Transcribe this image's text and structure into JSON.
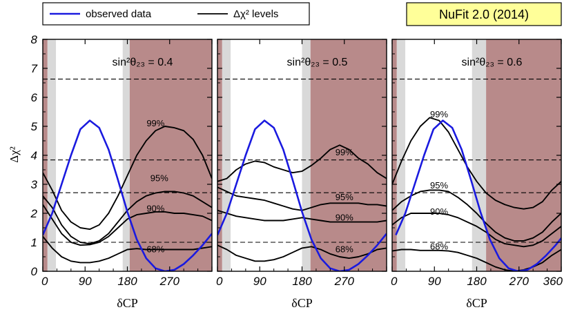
{
  "chart_data": {
    "type": "line",
    "badge": "NuFit 2.0 (2014)",
    "legend": [
      {
        "label": "observed data",
        "color": "#1a1adf"
      },
      {
        "label": "Δχ² levels",
        "color": "#000000"
      }
    ],
    "ylabel": "Δχ²",
    "xlabel": "δCP",
    "x_range": [
      0,
      360
    ],
    "y_range": [
      0,
      8
    ],
    "x_ticks": [
      0,
      90,
      180,
      270,
      360
    ],
    "y_ticks": [
      0,
      1,
      2,
      3,
      4,
      5,
      6,
      7,
      8
    ],
    "y_tick_labels": [
      "0",
      "1",
      "2",
      "3",
      "4",
      "5",
      "6",
      "7",
      "8"
    ],
    "colors": {
      "excluded_region": "#b88a8a",
      "allowed_band": "#d9d9d9",
      "observed": "#1a1adf",
      "levels": "#000000"
    },
    "reference_lines": [
      1.0,
      2.71,
      3.84,
      6.63
    ],
    "observed": {
      "name": "observed data",
      "x": [
        0,
        20,
        40,
        60,
        80,
        100,
        120,
        140,
        160,
        180,
        200,
        220,
        240,
        260,
        280,
        300,
        320,
        340,
        360
      ],
      "y": [
        1.25,
        2.0,
        3.0,
        4.0,
        4.9,
        5.2,
        4.95,
        4.2,
        3.15,
        2.05,
        1.1,
        0.45,
        0.1,
        0.0,
        0.05,
        0.25,
        0.55,
        0.9,
        1.3
      ]
    },
    "panels": [
      {
        "title": "sin²θ₂₃ = 0.4",
        "x_tick_labels": [
          "0",
          "90",
          "180",
          "270",
          ""
        ],
        "observed_shift": 0,
        "shaded": [
          [
            0,
            10,
            "excluded_region"
          ],
          [
            10,
            28,
            "allowed_band"
          ],
          [
            170,
            185,
            "allowed_band"
          ],
          [
            185,
            360,
            "excluded_region"
          ]
        ],
        "curves": [
          {
            "label": "99%",
            "x": [
              0,
              20,
              40,
              60,
              80,
              100,
              120,
              140,
              160,
              180,
              200,
              220,
              240,
              260,
              280,
              300,
              320,
              340,
              360
            ],
            "y": [
              3.4,
              2.8,
              2.1,
              1.7,
              1.5,
              1.45,
              1.6,
              2.0,
              2.6,
              3.3,
              4.0,
              4.5,
              4.85,
              5.0,
              4.95,
              4.85,
              4.55,
              4.0,
              3.2
            ]
          },
          {
            "label": "95%",
            "x": [
              0,
              20,
              40,
              60,
              80,
              100,
              120,
              140,
              160,
              180,
              200,
              220,
              240,
              260,
              280,
              300,
              320,
              340,
              360
            ],
            "y": [
              2.6,
              2.2,
              1.6,
              1.2,
              1.0,
              0.95,
              1.05,
              1.3,
              1.7,
              2.1,
              2.4,
              2.6,
              2.7,
              2.75,
              2.75,
              2.7,
              2.6,
              2.4,
              2.2
            ]
          },
          {
            "label": "90%",
            "x": [
              0,
              20,
              40,
              60,
              80,
              100,
              120,
              140,
              160,
              180,
              200,
              220,
              240,
              260,
              280,
              300,
              320,
              340,
              360
            ],
            "y": [
              2.3,
              1.8,
              1.3,
              1.0,
              0.9,
              0.92,
              1.0,
              1.2,
              1.5,
              1.8,
              1.95,
              2.0,
              2.05,
              2.05,
              2.0,
              2.0,
              1.95,
              1.9,
              1.75
            ]
          },
          {
            "label": "68%",
            "x": [
              0,
              20,
              40,
              60,
              80,
              100,
              120,
              140,
              160,
              180,
              200,
              220,
              240,
              260,
              280,
              300,
              320,
              340,
              360
            ],
            "y": [
              1.2,
              0.8,
              0.5,
              0.35,
              0.3,
              0.3,
              0.35,
              0.45,
              0.6,
              0.75,
              0.78,
              0.75,
              0.75,
              0.75,
              0.75,
              0.75,
              0.75,
              0.8,
              0.85
            ]
          }
        ],
        "labels": [
          [
            240,
            5.1,
            "99%"
          ],
          [
            248,
            3.2,
            "95%"
          ],
          [
            240,
            2.15,
            "90%"
          ],
          [
            240,
            0.75,
            "68%"
          ]
        ]
      },
      {
        "title": "sin²θ₂₃ = 0.5",
        "x_tick_labels": [
          "0",
          "90",
          "180",
          "270",
          ""
        ],
        "observed_shift": 0,
        "shaded": [
          [
            0,
            10,
            "excluded_region"
          ],
          [
            10,
            28,
            "allowed_band"
          ],
          [
            180,
            198,
            "allowed_band"
          ],
          [
            198,
            360,
            "excluded_region"
          ]
        ],
        "curves": [
          {
            "label": "99%",
            "x": [
              0,
              20,
              40,
              60,
              80,
              100,
              120,
              140,
              160,
              180,
              200,
              220,
              240,
              260,
              280,
              300,
              320,
              340,
              360
            ],
            "y": [
              3.1,
              3.2,
              3.5,
              3.7,
              3.8,
              3.75,
              3.6,
              3.5,
              3.4,
              3.45,
              3.65,
              3.9,
              4.2,
              4.35,
              4.2,
              3.9,
              3.7,
              3.4,
              3.2
            ]
          },
          {
            "label": "95%",
            "x": [
              0,
              20,
              40,
              60,
              80,
              100,
              120,
              140,
              160,
              180,
              200,
              220,
              240,
              260,
              280,
              300,
              320,
              340,
              360
            ],
            "y": [
              2.9,
              2.75,
              2.6,
              2.55,
              2.5,
              2.45,
              2.35,
              2.25,
              2.15,
              2.1,
              2.2,
              2.3,
              2.35,
              2.35,
              2.35,
              2.35,
              2.3,
              2.3,
              2.25
            ]
          },
          {
            "label": "90%",
            "x": [
              0,
              20,
              40,
              60,
              80,
              100,
              120,
              140,
              160,
              180,
              200,
              220,
              240,
              260,
              280,
              300,
              320,
              340,
              360
            ],
            "y": [
              2.1,
              2.0,
              1.9,
              1.85,
              1.8,
              1.75,
              1.75,
              1.75,
              1.8,
              1.85,
              1.8,
              1.75,
              1.7,
              1.7,
              1.7,
              1.7,
              1.7,
              1.7,
              1.75
            ]
          },
          {
            "label": "68%",
            "x": [
              0,
              20,
              40,
              60,
              80,
              100,
              120,
              140,
              160,
              180,
              200,
              220,
              240,
              260,
              280,
              300,
              320,
              340,
              360
            ],
            "y": [
              0.9,
              0.75,
              0.55,
              0.45,
              0.35,
              0.35,
              0.4,
              0.5,
              0.65,
              0.8,
              0.85,
              0.75,
              0.6,
              0.5,
              0.45,
              0.5,
              0.6,
              0.75,
              0.8
            ]
          }
        ],
        "labels": [
          [
            270,
            4.1,
            "99%"
          ],
          [
            270,
            2.55,
            "95%"
          ],
          [
            270,
            1.85,
            "90%"
          ],
          [
            270,
            0.75,
            "68%"
          ]
        ]
      },
      {
        "title": "sin²θ₂₃ = 0.6",
        "x_tick_labels": [
          "0",
          "90",
          "180",
          "270",
          "360"
        ],
        "observed_shift": 8,
        "shaded": [
          [
            0,
            10,
            "excluded_region"
          ],
          [
            10,
            28,
            "allowed_band"
          ],
          [
            170,
            200,
            "allowed_band"
          ],
          [
            200,
            360,
            "excluded_region"
          ]
        ],
        "curves": [
          {
            "label": "99%",
            "x": [
              0,
              20,
              40,
              60,
              80,
              100,
              120,
              140,
              160,
              180,
              200,
              220,
              240,
              260,
              280,
              300,
              320,
              340,
              360
            ],
            "y": [
              3.0,
              3.8,
              4.5,
              5.0,
              5.3,
              5.2,
              4.8,
              4.2,
              3.6,
              3.1,
              2.7,
              2.45,
              2.3,
              2.2,
              2.15,
              2.2,
              2.4,
              2.8,
              3.1
            ]
          },
          {
            "label": "95%",
            "x": [
              0,
              20,
              40,
              60,
              80,
              100,
              120,
              140,
              160,
              180,
              200,
              220,
              240,
              260,
              280,
              300,
              320,
              340,
              360
            ],
            "y": [
              2.1,
              2.4,
              2.6,
              2.75,
              2.8,
              2.8,
              2.75,
              2.55,
              2.3,
              2.0,
              1.65,
              1.35,
              1.15,
              1.05,
              1.05,
              1.15,
              1.35,
              1.7,
              2.0
            ]
          },
          {
            "label": "90%",
            "x": [
              0,
              20,
              40,
              60,
              80,
              100,
              120,
              140,
              160,
              180,
              200,
              220,
              240,
              260,
              280,
              300,
              320,
              340,
              360
            ],
            "y": [
              1.6,
              1.85,
              2.0,
              2.0,
              2.0,
              2.0,
              1.95,
              1.85,
              1.7,
              1.55,
              1.35,
              1.1,
              0.95,
              0.9,
              0.85,
              0.9,
              1.05,
              1.3,
              1.55
            ]
          },
          {
            "label": "68%",
            "x": [
              0,
              20,
              40,
              60,
              80,
              100,
              120,
              140,
              160,
              180,
              200,
              220,
              240,
              260,
              280,
              300,
              320,
              340,
              360
            ],
            "y": [
              0.7,
              0.75,
              0.75,
              0.72,
              0.72,
              0.72,
              0.7,
              0.65,
              0.55,
              0.45,
              0.3,
              0.15,
              0.05,
              0.0,
              0.05,
              0.15,
              0.3,
              0.55,
              0.75
            ]
          }
        ],
        "labels": [
          [
            100,
            5.4,
            "99%"
          ],
          [
            100,
            2.95,
            "95%"
          ],
          [
            100,
            2.05,
            "90%"
          ],
          [
            100,
            0.85,
            "68%"
          ]
        ]
      }
    ]
  }
}
